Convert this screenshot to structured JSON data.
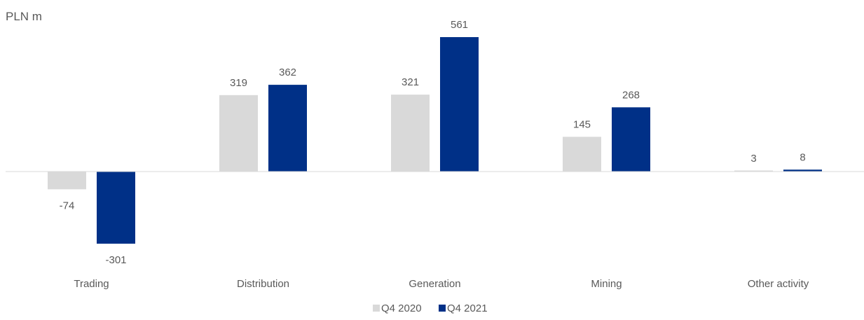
{
  "chart_data": {
    "type": "bar",
    "unit_label": "PLN m",
    "categories": [
      "Trading",
      "Distribution",
      "Generation",
      "Mining",
      "Other activity"
    ],
    "series": [
      {
        "name": "Q4 2020",
        "color": "#d9d9d9",
        "values": [
          -74,
          319,
          321,
          145,
          3
        ]
      },
      {
        "name": "Q4 2021",
        "color": "#003087",
        "values": [
          -301,
          362,
          561,
          268,
          8
        ]
      }
    ],
    "title": "",
    "xlabel": "",
    "ylabel": "",
    "ylim": [
      -301,
      561
    ],
    "grid": false,
    "legend": "bottom-center",
    "axis_color": "#d9d9d9"
  }
}
